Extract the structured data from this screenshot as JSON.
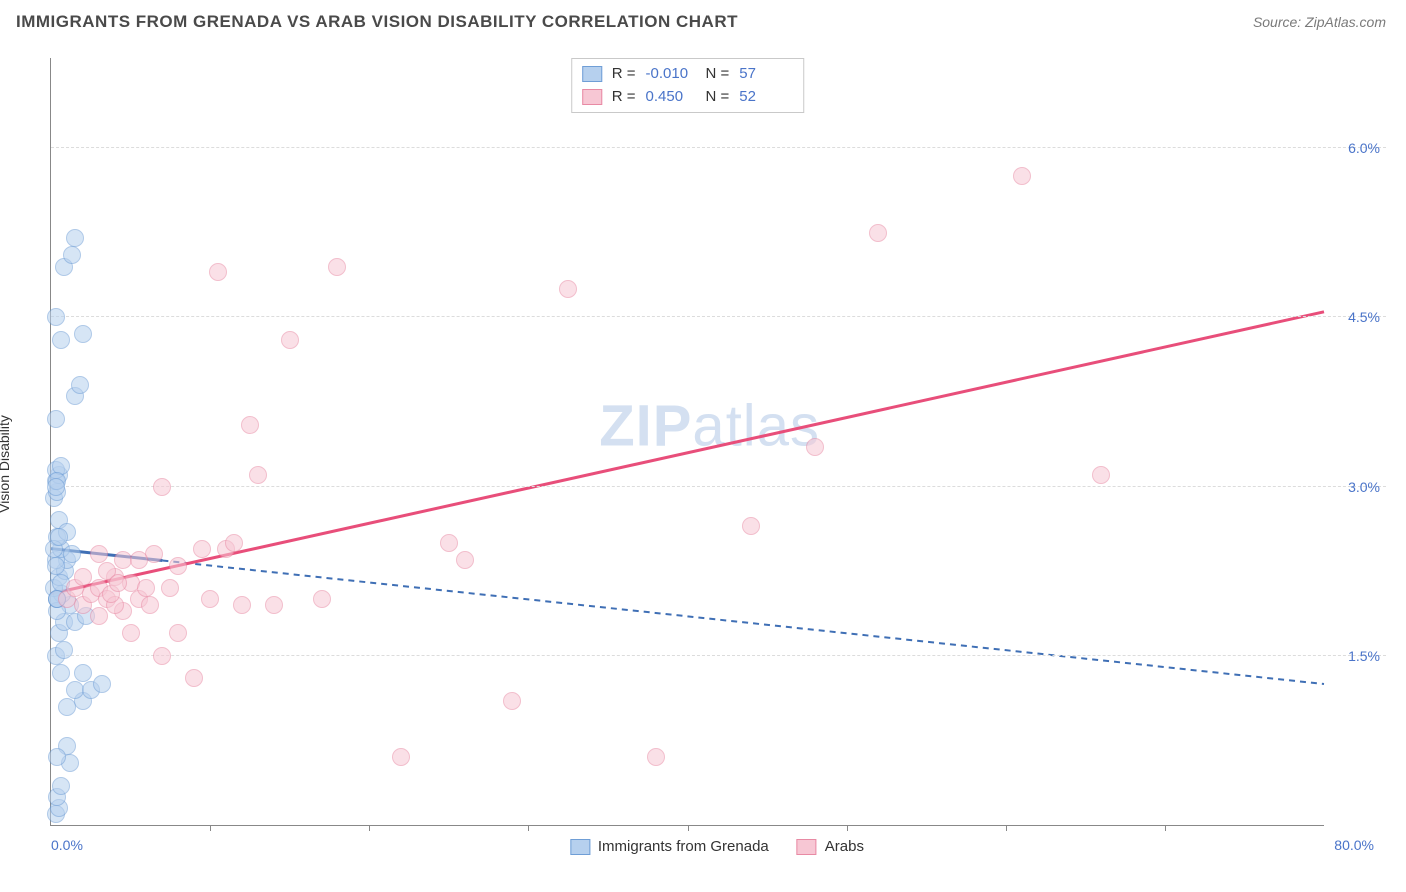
{
  "header": {
    "title": "IMMIGRANTS FROM GRENADA VS ARAB VISION DISABILITY CORRELATION CHART",
    "source": "Source: ZipAtlas.com"
  },
  "chart": {
    "type": "scatter",
    "y_axis_label": "Vision Disability",
    "xlim": [
      0,
      80
    ],
    "ylim": [
      0,
      6.8
    ],
    "x_min_label": "0.0%",
    "x_max_label": "80.0%",
    "y_ticks": [
      1.5,
      3.0,
      4.5,
      6.0
    ],
    "y_tick_labels": [
      "1.5%",
      "3.0%",
      "4.5%",
      "6.0%"
    ],
    "x_tick_positions": [
      10,
      20,
      30,
      40,
      50,
      60,
      70
    ],
    "grid_color": "#dcdcdc",
    "axis_color": "#888888",
    "background_color": "#ffffff",
    "watermark": "ZIPatlas",
    "marker_radius": 9,
    "series": [
      {
        "name": "Immigrants from Grenada",
        "fill": "#b6d0ee",
        "stroke": "#6f9ed6",
        "fill_opacity": 0.55,
        "r_value": "-0.010",
        "n_value": "57",
        "trend": {
          "x1": 0,
          "y1": 2.45,
          "x2": 80,
          "y2": 1.25,
          "stroke": "#3f6fb5",
          "width": 2,
          "dash": "6 5",
          "solid_until_x": 7
        },
        "points": [
          [
            0.3,
            0.1
          ],
          [
            0.5,
            0.15
          ],
          [
            0.4,
            0.25
          ],
          [
            0.6,
            0.35
          ],
          [
            1.2,
            0.55
          ],
          [
            1.0,
            0.7
          ],
          [
            0.4,
            0.6
          ],
          [
            1.0,
            1.05
          ],
          [
            2.0,
            1.1
          ],
          [
            1.5,
            1.2
          ],
          [
            2.5,
            1.2
          ],
          [
            3.2,
            1.25
          ],
          [
            2.0,
            1.35
          ],
          [
            0.6,
            1.35
          ],
          [
            0.3,
            1.5
          ],
          [
            0.8,
            1.55
          ],
          [
            0.5,
            1.7
          ],
          [
            0.8,
            1.8
          ],
          [
            1.5,
            1.8
          ],
          [
            2.2,
            1.85
          ],
          [
            1.2,
            1.95
          ],
          [
            0.4,
            2.0
          ],
          [
            0.7,
            2.05
          ],
          [
            0.2,
            2.1
          ],
          [
            0.5,
            2.2
          ],
          [
            0.9,
            2.25
          ],
          [
            1.0,
            2.35
          ],
          [
            0.3,
            2.35
          ],
          [
            0.6,
            2.45
          ],
          [
            1.3,
            2.4
          ],
          [
            0.4,
            2.55
          ],
          [
            0.2,
            2.9
          ],
          [
            0.4,
            2.95
          ],
          [
            0.3,
            3.05
          ],
          [
            0.5,
            3.1
          ],
          [
            0.3,
            3.15
          ],
          [
            0.6,
            3.18
          ],
          [
            0.4,
            3.05
          ],
          [
            0.3,
            3.6
          ],
          [
            1.5,
            3.8
          ],
          [
            1.8,
            3.9
          ],
          [
            0.6,
            4.3
          ],
          [
            2.0,
            4.35
          ],
          [
            0.3,
            4.5
          ],
          [
            0.8,
            4.95
          ],
          [
            1.3,
            5.05
          ],
          [
            1.5,
            5.2
          ],
          [
            0.3,
            3.0
          ],
          [
            0.5,
            2.7
          ],
          [
            1.0,
            2.6
          ],
          [
            0.4,
            1.9
          ],
          [
            0.6,
            2.15
          ],
          [
            0.2,
            2.45
          ],
          [
            0.4,
            2.0
          ],
          [
            0.3,
            2.3
          ],
          [
            0.5,
            2.55
          ],
          [
            0.4,
            2.0
          ]
        ]
      },
      {
        "name": "Arabs",
        "fill": "#f7c7d4",
        "stroke": "#e88aa4",
        "fill_opacity": 0.55,
        "r_value": "0.450",
        "n_value": "52",
        "trend": {
          "x1": 0,
          "y1": 2.05,
          "x2": 80,
          "y2": 4.55,
          "stroke": "#e84e7a",
          "width": 3,
          "dash": "",
          "solid_until_x": 80
        },
        "points": [
          [
            1.0,
            2.0
          ],
          [
            1.5,
            2.1
          ],
          [
            2.0,
            1.95
          ],
          [
            2.5,
            2.05
          ],
          [
            3.0,
            2.1
          ],
          [
            3.5,
            2.0
          ],
          [
            4.0,
            2.2
          ],
          [
            4.5,
            1.9
          ],
          [
            5.0,
            2.15
          ],
          [
            5.5,
            2.0
          ],
          [
            2.0,
            2.2
          ],
          [
            3.0,
            1.85
          ],
          [
            4.0,
            1.95
          ],
          [
            3.5,
            2.25
          ],
          [
            5.0,
            1.7
          ],
          [
            6.0,
            2.1
          ],
          [
            4.5,
            2.35
          ],
          [
            6.5,
            2.4
          ],
          [
            7.0,
            1.5
          ],
          [
            8.0,
            2.3
          ],
          [
            7.5,
            2.1
          ],
          [
            3.0,
            2.4
          ],
          [
            9.5,
            2.45
          ],
          [
            10.0,
            2.0
          ],
          [
            11.0,
            2.45
          ],
          [
            12.0,
            1.95
          ],
          [
            11.5,
            2.5
          ],
          [
            7.0,
            3.0
          ],
          [
            12.5,
            3.55
          ],
          [
            14.0,
            1.95
          ],
          [
            15.0,
            4.3
          ],
          [
            17.0,
            2.0
          ],
          [
            18.0,
            4.95
          ],
          [
            22.0,
            0.6
          ],
          [
            25.0,
            2.5
          ],
          [
            26.0,
            2.35
          ],
          [
            29.0,
            1.1
          ],
          [
            32.5,
            4.75
          ],
          [
            38.0,
            0.6
          ],
          [
            13.0,
            3.1
          ],
          [
            9.0,
            1.3
          ],
          [
            44.0,
            2.65
          ],
          [
            48.0,
            3.35
          ],
          [
            52.0,
            5.25
          ],
          [
            66.0,
            3.1
          ],
          [
            61.0,
            5.75
          ],
          [
            10.5,
            4.9
          ],
          [
            8.0,
            1.7
          ],
          [
            5.5,
            2.35
          ],
          [
            6.2,
            1.95
          ],
          [
            3.8,
            2.05
          ],
          [
            4.2,
            2.15
          ]
        ]
      }
    ],
    "legend_top": {
      "r_label": "R =",
      "n_label": "N ="
    },
    "legend_bottom_labels": [
      "Immigrants from Grenada",
      "Arabs"
    ]
  }
}
